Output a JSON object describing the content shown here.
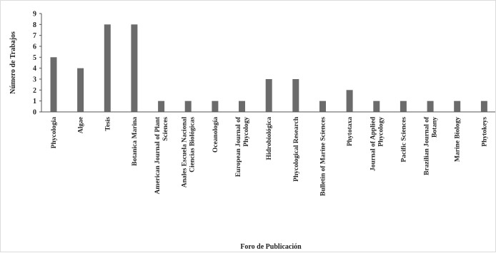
{
  "chart_data": {
    "type": "bar",
    "title": "",
    "xlabel": "Foro de Publicación",
    "ylabel": "Número de Trabajos",
    "ylim": [
      0,
      9
    ],
    "yticks": [
      0,
      1,
      2,
      3,
      4,
      5,
      6,
      7,
      8,
      9
    ],
    "grid": false,
    "legend": "none",
    "bar_color": "#6b6b6b",
    "categories": [
      [
        "Phycologia"
      ],
      [
        "Algae"
      ],
      [
        "Tesis"
      ],
      [
        "Botanica Marina"
      ],
      [
        "American Journal of Plant",
        "Sciences"
      ],
      [
        "Anales Escuela Nacional",
        "Ciencias Biológicas"
      ],
      [
        "Oceanología"
      ],
      [
        "European Journal of",
        "Phycology"
      ],
      [
        "Hidrobiológica"
      ],
      [
        "Phycological Research"
      ],
      [
        "Bulletin of Marine Sciences"
      ],
      [
        "Phytotaxa"
      ],
      [
        "Journal of Applied",
        "Phycology"
      ],
      [
        "Pacific Sciences"
      ],
      [
        "Brazilian Journal of",
        "Botany"
      ],
      [
        "Marine Biology"
      ],
      [
        "Phytokeys"
      ]
    ],
    "values": [
      5,
      4,
      8,
      8,
      1,
      1,
      1,
      1,
      3,
      3,
      1,
      2,
      1,
      1,
      1,
      1,
      1
    ]
  }
}
